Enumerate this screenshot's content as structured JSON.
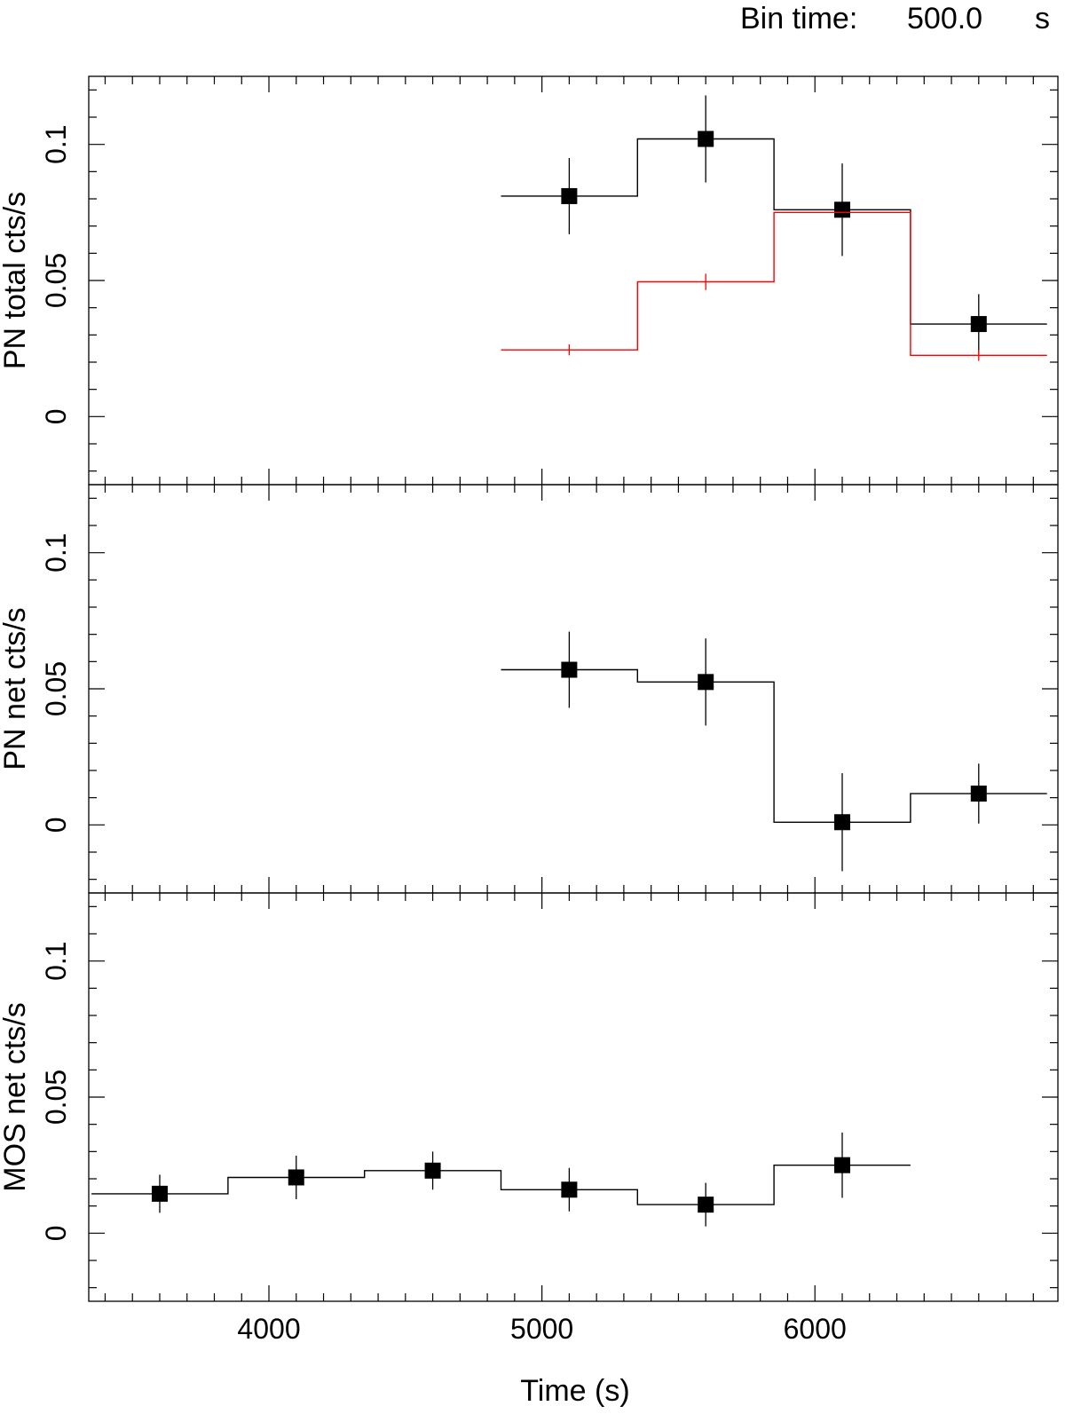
{
  "header": {
    "bin_label": "Bin time:",
    "bin_value": "500.0",
    "bin_unit": "s"
  },
  "colors": {
    "frame": "#000000",
    "total_series": "#000000",
    "background_series": "#ff0000"
  },
  "chart_data": {
    "type": "line",
    "step": true,
    "bin_width": 500,
    "xlabel": "Time (s)",
    "xlim": [
      3340,
      6890
    ],
    "x_ticks": [
      4000,
      5000,
      6000
    ],
    "x_tick_labels": [
      "4000",
      "5000",
      "6000"
    ],
    "panels": [
      {
        "ylabel": "PN total cts/s",
        "ylim": [
          -0.025,
          0.125
        ],
        "y_ticks": [
          0,
          0.05,
          0.1
        ],
        "y_tick_labels": [
          "0",
          "0.05",
          "0.1"
        ],
        "series": [
          {
            "color": "#000000",
            "markers": true,
            "x": [
              5100,
              5600,
              6100,
              6600
            ],
            "y": [
              0.081,
              0.102,
              0.076,
              0.034
            ],
            "yerr": [
              0.014,
              0.016,
              0.017,
              0.011
            ]
          },
          {
            "color": "#ff0000",
            "markers": false,
            "x": [
              5100,
              5600,
              6100,
              6600
            ],
            "y": [
              0.0245,
              0.0495,
              0.075,
              0.0225
            ],
            "yerr": [
              0.002,
              0.003,
              0.0,
              0.002
            ]
          }
        ]
      },
      {
        "ylabel": "PN net cts/s",
        "ylim": [
          -0.025,
          0.125
        ],
        "y_ticks": [
          0,
          0.05,
          0.1
        ],
        "y_tick_labels": [
          "0",
          "0.05",
          "0.1"
        ],
        "series": [
          {
            "color": "#000000",
            "markers": true,
            "x": [
              5100,
              5600,
              6100,
              6600
            ],
            "y": [
              0.057,
              0.0525,
              0.001,
              0.0115
            ],
            "yerr": [
              0.014,
              0.016,
              0.018,
              0.011
            ]
          }
        ]
      },
      {
        "ylabel": "MOS net cts/s",
        "ylim": [
          -0.025,
          0.125
        ],
        "y_ticks": [
          0,
          0.05,
          0.1
        ],
        "y_tick_labels": [
          "0",
          "0.05",
          "0.1"
        ],
        "series": [
          {
            "color": "#000000",
            "markers": true,
            "x": [
              3600,
              4100,
              4600,
              5100,
              5600,
              6100
            ],
            "y": [
              0.0145,
              0.0205,
              0.023,
              0.016,
              0.0105,
              0.025
            ],
            "yerr": [
              0.007,
              0.008,
              0.007,
              0.008,
              0.008,
              0.012
            ]
          }
        ]
      }
    ]
  }
}
